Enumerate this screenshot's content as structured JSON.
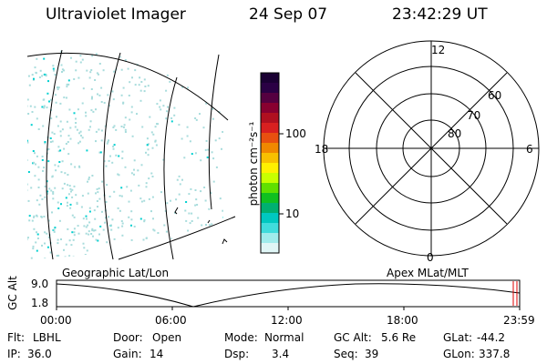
{
  "header": {
    "title": "Ultraviolet Imager",
    "date": "24 Sep 07",
    "time": "23:42:29 UT"
  },
  "geo_map": {
    "label": "Geographic Lat/Lon"
  },
  "colorbar": {
    "unit_label": "photon cm⁻²s⁻¹",
    "ticks": [
      {
        "label": "100",
        "value": 100
      },
      {
        "label": "10",
        "value": 10
      }
    ],
    "colors": [
      "#1a0033",
      "#2a0044",
      "#550040",
      "#880030",
      "#b01020",
      "#d82020",
      "#e85010",
      "#f08800",
      "#f8c000",
      "#fff000",
      "#c8ff00",
      "#60e000",
      "#10c020",
      "#00b070",
      "#00c8c0",
      "#40dcdc",
      "#a0ecec",
      "#e0f6f6"
    ]
  },
  "polar_plot": {
    "label": "Apex MLat/MLT",
    "mlt_labels": [
      "12",
      "6",
      "0",
      "18"
    ],
    "lat_labels": [
      "60",
      "70",
      "80"
    ]
  },
  "gc_alt_plot": {
    "ylabel": "GC Alt",
    "yticks": [
      "9.0",
      "1.8"
    ],
    "xticks": [
      "00:00",
      "06:00",
      "12:00",
      "18:00",
      "23:59"
    ]
  },
  "info": {
    "row1": [
      {
        "label": "Flt:",
        "value": "LBHL"
      },
      {
        "label": "Door:",
        "value": "Open"
      },
      {
        "label": "Mode:",
        "value": "Normal"
      },
      {
        "label": "GC Alt:",
        "value": "5.6 Re"
      },
      {
        "label": "GLat:",
        "value": "-44.2"
      }
    ],
    "row2": [
      {
        "label": "IP:",
        "value": "36.0"
      },
      {
        "label": "Gain:",
        "value": "14"
      },
      {
        "label": "Dsp:",
        "value": "3.4"
      },
      {
        "label": "Seq:",
        "value": "39"
      },
      {
        "label": "GLon:",
        "value": "337.8"
      }
    ]
  },
  "colors": {
    "frame": "#000000",
    "cursor": "#dd0000",
    "dots_cyan": "#00d0d0",
    "dots_pale": "#a8dcdc"
  }
}
